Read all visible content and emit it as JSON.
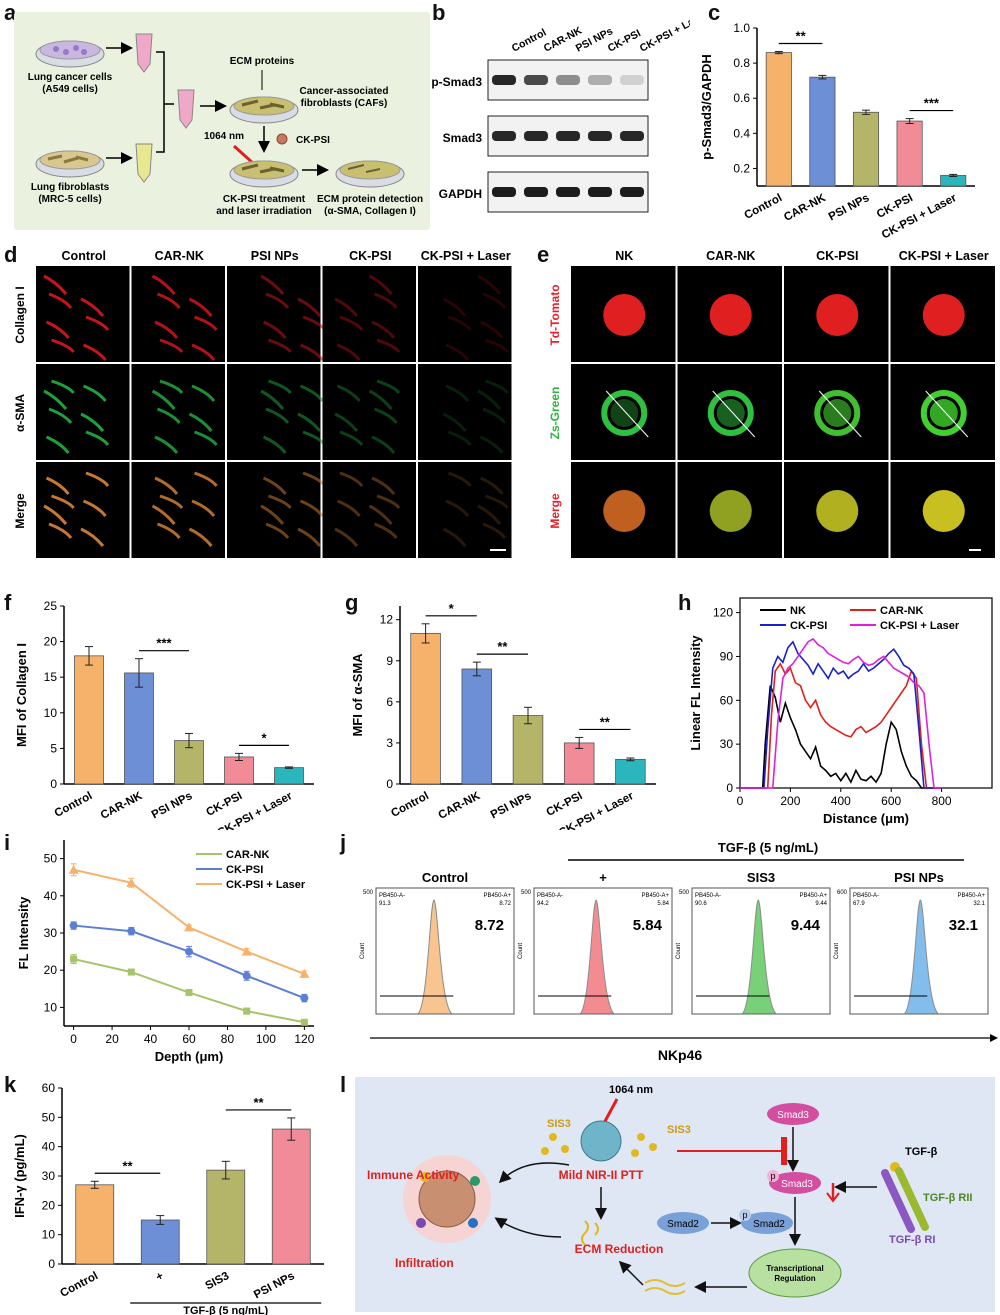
{
  "panels": {
    "a": "a",
    "b": "b",
    "c": "c",
    "d": "d",
    "e": "e",
    "f": "f",
    "g": "g",
    "h": "h",
    "i": "i",
    "j": "j",
    "k": "k",
    "l": "l"
  },
  "schematic_a": {
    "lung_cancer": "Lung cancer cells",
    "a549": "(A549 cells)",
    "lung_fibro": "Lung fibroblasts",
    "mrc5": "(MRC-5 cells)",
    "ecm_proteins": "ECM proteins",
    "cafs1": "Cancer-associated",
    "cafs2": "fibroblasts (CAFs)",
    "laser": "1064 nm",
    "ckpsi": "CK-PSI",
    "treat1": "CK-PSI treatment",
    "treat2": "and laser irradiation",
    "detect1": "ECM protein detection",
    "detect2": "(α-SMA, Collagen I)"
  },
  "western_b": {
    "lanes": [
      "Control",
      "CAR-NK",
      "PSI NPs",
      "CK-PSI",
      "CK-PSI + Laser"
    ],
    "rows": [
      "p-Smad3",
      "Smad3",
      "GAPDH"
    ]
  },
  "microscopy_d": {
    "columns": [
      "Control",
      "CAR-NK",
      "PSI NPs",
      "CK-PSI",
      "CK-PSI + Laser"
    ],
    "rows": [
      "Collagen I",
      "α-SMA",
      "Merge"
    ],
    "colors": [
      "#c8141a",
      "#1ea03a",
      "#c87830"
    ]
  },
  "microscopy_e": {
    "columns": [
      "NK",
      "CAR-NK",
      "CK-PSI",
      "CK-PSI + Laser"
    ],
    "rows": [
      "Td-Tomato",
      "Zs-Green",
      "Merge"
    ],
    "row_colors": [
      "#e8202a",
      "#2bb53c",
      "#e8202a"
    ]
  },
  "chart_data": [
    {
      "panel": "c",
      "type": "bar",
      "categories": [
        "Control",
        "CAR-NK",
        "PSI NPs",
        "CK-PSI",
        "CK-PSI + Laser"
      ],
      "values": [
        0.86,
        0.72,
        0.52,
        0.47,
        0.16
      ],
      "errors": [
        0.006,
        0.01,
        0.012,
        0.014,
        0.006
      ],
      "colors": [
        "#f6b26b",
        "#6d8fd6",
        "#b5b56a",
        "#f28b98",
        "#2bb5bd"
      ],
      "ylabel": "p-Smad3/GAPDH",
      "ylim": [
        0.1,
        1.0
      ],
      "yticks": [
        "0.2",
        "0.4",
        "0.6",
        "0.8",
        "1.0"
      ],
      "significance": [
        {
          "from": 0,
          "to": 1,
          "label": "**"
        },
        {
          "from": 3,
          "to": 4,
          "label": "***"
        }
      ]
    },
    {
      "panel": "f",
      "type": "bar",
      "categories": [
        "Control",
        "CAR-NK",
        "PSI NPs",
        "CK-PSI",
        "CK-PSI + Laser"
      ],
      "values": [
        18,
        15.6,
        6.1,
        3.8,
        2.3
      ],
      "errors": [
        1.3,
        2.0,
        1.0,
        0.5,
        0.1
      ],
      "colors": [
        "#f6b26b",
        "#6d8fd6",
        "#b5b56a",
        "#f28b98",
        "#2bb5bd"
      ],
      "ylabel": "MFI of Collagen I",
      "ylim": [
        0,
        25
      ],
      "yticks": [
        "0",
        "5",
        "10",
        "15",
        "20",
        "25"
      ],
      "significance": [
        {
          "from": 1,
          "to": 2,
          "label": "***"
        },
        {
          "from": 3,
          "to": 4,
          "label": "*"
        }
      ]
    },
    {
      "panel": "g",
      "type": "bar",
      "categories": [
        "Control",
        "CAR-NK",
        "PSI NPs",
        "CK-PSI",
        "CK-PSI + Laser"
      ],
      "values": [
        11.0,
        8.4,
        5.0,
        3.0,
        1.8
      ],
      "errors": [
        0.7,
        0.5,
        0.6,
        0.4,
        0.1
      ],
      "colors": [
        "#f6b26b",
        "#6d8fd6",
        "#b5b56a",
        "#f28b98",
        "#2bb5bd"
      ],
      "ylabel": "MFI of α-SMA",
      "ylim": [
        0,
        13
      ],
      "yticks": [
        "0",
        "3",
        "6",
        "9",
        "12"
      ],
      "significance": [
        {
          "from": 0,
          "to": 1,
          "label": "*"
        },
        {
          "from": 1,
          "to": 2,
          "label": "**"
        },
        {
          "from": 3,
          "to": 4,
          "label": "**"
        }
      ]
    },
    {
      "panel": "h",
      "type": "line",
      "xlabel": "Distance (μm)",
      "ylabel": "Linear FL Intensity",
      "xlim": [
        0,
        1000
      ],
      "ylim": [
        0,
        130
      ],
      "xticks": [
        "0",
        "200",
        "400",
        "600",
        "800"
      ],
      "yticks": [
        "0",
        "30",
        "60",
        "90",
        "120"
      ],
      "series": [
        {
          "name": "NK",
          "color": "#000000",
          "x": [
            0,
            90,
            100,
            120,
            140,
            160,
            180,
            200,
            220,
            240,
            260,
            280,
            300,
            320,
            340,
            360,
            380,
            400,
            420,
            440,
            460,
            480,
            500,
            520,
            540,
            560,
            580,
            600,
            620,
            640,
            660,
            680,
            700,
            720,
            800
          ],
          "y": [
            0,
            0,
            30,
            70,
            62,
            45,
            58,
            48,
            40,
            30,
            25,
            20,
            28,
            15,
            12,
            8,
            10,
            5,
            10,
            4,
            12,
            6,
            5,
            8,
            4,
            10,
            30,
            45,
            40,
            25,
            15,
            8,
            5,
            0,
            0
          ]
        },
        {
          "name": "CAR-NK",
          "color": "#e0201a",
          "x": [
            0,
            110,
            125,
            140,
            160,
            180,
            200,
            220,
            240,
            260,
            280,
            300,
            320,
            340,
            360,
            380,
            400,
            420,
            440,
            460,
            480,
            500,
            520,
            540,
            560,
            580,
            600,
            620,
            640,
            660,
            680,
            700,
            720,
            740,
            800
          ],
          "y": [
            0,
            0,
            50,
            80,
            85,
            78,
            82,
            72,
            70,
            60,
            55,
            60,
            50,
            45,
            42,
            40,
            38,
            36,
            35,
            40,
            42,
            38,
            40,
            42,
            45,
            50,
            55,
            60,
            65,
            70,
            80,
            75,
            30,
            0,
            0
          ]
        },
        {
          "name": "CK-PSI",
          "color": "#1a20d0",
          "x": [
            0,
            95,
            110,
            130,
            150,
            170,
            190,
            210,
            230,
            250,
            270,
            290,
            310,
            330,
            350,
            370,
            390,
            410,
            430,
            450,
            470,
            490,
            510,
            530,
            550,
            570,
            590,
            610,
            630,
            650,
            670,
            690,
            710,
            730,
            800
          ],
          "y": [
            0,
            0,
            40,
            82,
            90,
            86,
            96,
            100,
            92,
            88,
            84,
            78,
            85,
            80,
            75,
            82,
            78,
            80,
            75,
            78,
            80,
            85,
            80,
            82,
            85,
            88,
            92,
            95,
            90,
            84,
            82,
            78,
            40,
            0,
            0
          ]
        },
        {
          "name": "CK-PSI + Laser",
          "color": "#e020d8",
          "x": [
            0,
            130,
            150,
            170,
            190,
            210,
            230,
            250,
            270,
            290,
            310,
            330,
            350,
            370,
            390,
            410,
            430,
            450,
            470,
            490,
            510,
            530,
            550,
            570,
            590,
            610,
            630,
            650,
            670,
            690,
            710,
            730,
            750,
            770,
            800
          ],
          "y": [
            0,
            0,
            45,
            75,
            82,
            85,
            90,
            95,
            100,
            102,
            98,
            96,
            92,
            90,
            88,
            86,
            85,
            88,
            90,
            86,
            84,
            85,
            88,
            90,
            86,
            82,
            80,
            78,
            76,
            72,
            70,
            65,
            30,
            0,
            0
          ]
        }
      ]
    },
    {
      "panel": "i",
      "type": "line",
      "xlabel": "Depth (μm)",
      "ylabel": "FL Intensity",
      "xlim": [
        -5,
        125
      ],
      "ylim": [
        5,
        55
      ],
      "xticks": [
        "0",
        "20",
        "40",
        "60",
        "80",
        "100",
        "120"
      ],
      "yticks": [
        "10",
        "20",
        "30",
        "40",
        "50"
      ],
      "x": [
        0,
        30,
        60,
        90,
        120
      ],
      "series": [
        {
          "name": "CAR-NK",
          "color": "#a8c46a",
          "values": [
            23,
            19.5,
            14,
            9,
            6
          ],
          "errors": [
            1.2,
            0.6,
            0.8,
            0.8,
            0.6
          ]
        },
        {
          "name": "CK-PSI",
          "color": "#5b7fd6",
          "values": [
            32,
            30.5,
            25,
            18.5,
            12.5
          ],
          "errors": [
            1.0,
            1.0,
            1.4,
            1.2,
            1.0
          ]
        },
        {
          "name": "CK-PSI + Laser",
          "color": "#f6b26b",
          "values": [
            47,
            43.5,
            31.5,
            25,
            19
          ],
          "errors": [
            1.6,
            1.2,
            0.6,
            0.8,
            0.8
          ]
        }
      ]
    },
    {
      "panel": "k",
      "type": "bar",
      "categories": [
        "Control",
        "+",
        "SIS3",
        "PSI NPs"
      ],
      "values": [
        27,
        15,
        32,
        46
      ],
      "errors": [
        1.2,
        1.5,
        3.0,
        3.8
      ],
      "colors": [
        "#f6b26b",
        "#6d8fd6",
        "#b5b56a",
        "#f28b98"
      ],
      "ylabel": "IFN-γ (pg/mL)",
      "ylim": [
        0,
        60
      ],
      "yticks": [
        "0",
        "10",
        "20",
        "30",
        "40",
        "50",
        "60"
      ],
      "group_label": "TGF-β (5 ng/mL)",
      "significance": [
        {
          "from": 0,
          "to": 1,
          "label": "**"
        },
        {
          "from": 2,
          "to": 3,
          "label": "**"
        }
      ]
    }
  ],
  "flow_j": {
    "header": "TGF-β (5 ng/mL)",
    "xlabel": "NKp46",
    "panels": [
      {
        "title": "Control",
        "value": "8.72",
        "color": "#f6b26b",
        "corner_left": "PB450-A-",
        "corner_right": "PB450-A+",
        "small_left": "91.3",
        "small_right": "8.72",
        "ymax": "500"
      },
      {
        "title": "+",
        "value": "5.84",
        "color": "#f0666c",
        "corner_left": "PB450-A-",
        "corner_right": "PB450-A+",
        "small_left": "94.2",
        "small_right": "5.84",
        "ymax": "500"
      },
      {
        "title": "SIS3",
        "value": "9.44",
        "color": "#4cc24c",
        "corner_left": "PB450-A-",
        "corner_right": "PB450-A+",
        "small_left": "90.6",
        "small_right": "9.44",
        "ymax": "500"
      },
      {
        "title": "PSI NPs",
        "value": "32.1",
        "color": "#5aa8e6",
        "corner_left": "PB450-A-",
        "corner_right": "PB450-A+",
        "small_left": "67.9",
        "small_right": "32.1",
        "ymax": "600"
      }
    ],
    "count_label": "Count"
  },
  "schematic_l": {
    "laser": "1064 nm",
    "sis3_left": "SIS3",
    "sis3_right": "SIS3",
    "ptt": "Mild NIR-II PTT",
    "immune": "Immune Activity",
    "infiltration": "Infiltration",
    "ecm": "ECM Reduction",
    "smad3_top": "Smad3",
    "smad3_mid": "Smad3",
    "smad2a": "Smad2",
    "smad2b": "Smad2",
    "p1": "p",
    "p2": "p",
    "transcription1": "Transcriptional",
    "transcription2": "Regulation",
    "tgfb": "TGF-β",
    "tgfb_r2": "TGF-β RII",
    "tgfb_r1": "TGF-β RI"
  }
}
